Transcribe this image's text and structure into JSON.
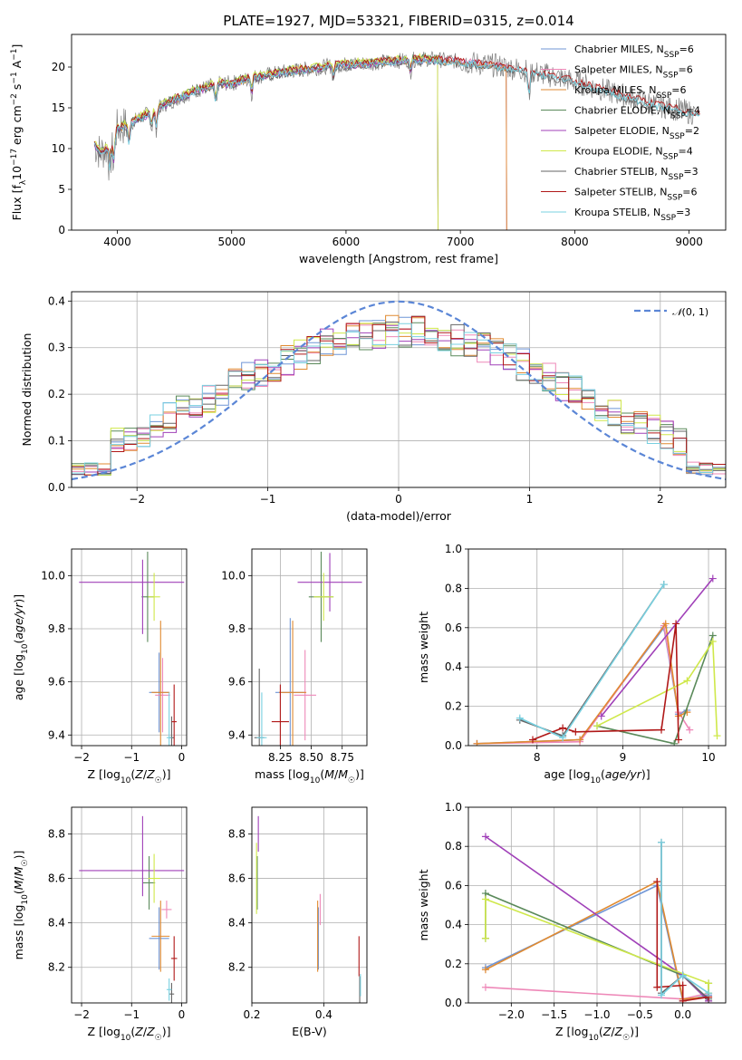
{
  "title": "PLATE=1927, MJD=53321, FIBERID=0315, z=0.014",
  "colors": {
    "Chabrier MILES": "#6f95d6",
    "Salpeter MILES": "#ee88b8",
    "Kroupa MILES": "#e08a30",
    "Chabrier ELODIE": "#5a8a5a",
    "Salpeter ELODIE": "#a040b8",
    "Kroupa ELODIE": "#cfe84a",
    "Chabrier STELIB": "#666666",
    "Salpeter STELIB": "#b01818",
    "Kroupa STELIB": "#78d0e0"
  },
  "chart_data": [
    {
      "id": "spectrum",
      "type": "line",
      "xlabel": "wavelength [Angstrom, rest frame]",
      "ylabel": "Flux [f_λ10^-17 erg cm^-2 s^-1 A^-1]",
      "xlim": [
        3600,
        9320
      ],
      "ylim": [
        0,
        24
      ],
      "xticks": [
        4000,
        5000,
        6000,
        7000,
        8000,
        9000
      ],
      "yticks": [
        0,
        5,
        10,
        15,
        20
      ],
      "legend_position": "top-right",
      "data_continuum": {
        "x": [
          3800,
          3850,
          3900,
          3950,
          4000,
          4100,
          4200,
          4300,
          4400,
          4500,
          4600,
          4700,
          4800,
          4900,
          5000,
          5100,
          5200,
          5300,
          5500,
          5700,
          5900,
          6100,
          6300,
          6500,
          6700,
          6900,
          7100,
          7300,
          7500,
          7700,
          7900,
          8100,
          8300,
          8500,
          8700,
          8900,
          9050
        ],
        "y": [
          10.5,
          9.5,
          10.0,
          10.5,
          12.5,
          13.0,
          13.8,
          14.5,
          15.3,
          16.0,
          16.6,
          17.2,
          17.6,
          18.0,
          18.0,
          18.4,
          18.8,
          19.0,
          19.5,
          19.8,
          20.2,
          20.4,
          20.6,
          20.8,
          21.0,
          20.8,
          20.5,
          20.2,
          19.8,
          19.2,
          18.6,
          17.8,
          17.0,
          16.2,
          15.4,
          14.8,
          14.3
        ]
      },
      "series": [
        {
          "name": "Chabrier MILES, N_SSP=6",
          "offset": 0.0,
          "xmax": 7400
        },
        {
          "name": "Salpeter MILES, N_SSP=6",
          "offset": 0.1,
          "xmax": 7400
        },
        {
          "name": "Kroupa MILES, N_SSP=6",
          "offset": -0.1,
          "xmax": 7400
        },
        {
          "name": "Chabrier ELODIE, N_SSP=4",
          "offset": 0.2,
          "xmax": 6800
        },
        {
          "name": "Salpeter ELODIE, N_SSP=2",
          "offset": -0.2,
          "xmax": 6800
        },
        {
          "name": "Kroupa ELODIE, N_SSP=4",
          "offset": 0.3,
          "xmax": 6800
        },
        {
          "name": "Chabrier STELIB, N_SSP=3",
          "offset": -0.3,
          "xmax": 9100
        },
        {
          "name": "Salpeter STELIB, N_SSP=6",
          "offset": 0.15,
          "xmax": 9100
        },
        {
          "name": "Kroupa STELIB, N_SSP=3",
          "offset": -0.15,
          "xmax": 9100
        }
      ]
    },
    {
      "id": "residuals",
      "type": "line",
      "xlabel": "(data-model)/error",
      "ylabel": "Normed distribution",
      "xlim": [
        -2.5,
        2.5
      ],
      "ylim": [
        0,
        0.42
      ],
      "xticks": [
        -2,
        -1,
        0,
        1,
        2
      ],
      "yticks": [
        0.0,
        0.1,
        0.2,
        0.3,
        0.4
      ],
      "grid": true,
      "legend_position": "top-right",
      "gaussian_label": "N(0,1)",
      "bin_width": 0.1
    },
    {
      "id": "age_vs_Z",
      "type": "scatter",
      "xlabel": "Z [log10(Z/Z☉)]",
      "ylabel": "age [log10(age/yr)]",
      "xlim": [
        -2.2,
        0.1
      ],
      "ylim": [
        9.36,
        10.1
      ],
      "xticks": [
        -2,
        -1,
        0
      ],
      "yticks": [
        9.4,
        9.6,
        9.8,
        10.0
      ],
      "grid": true,
      "points": [
        {
          "x": -0.45,
          "y": 9.56,
          "xe": 0.2,
          "ye": 0.15,
          "c": "Chabrier MILES"
        },
        {
          "x": -0.38,
          "y": 9.55,
          "xe": 0.15,
          "ye": 0.14,
          "c": "Salpeter MILES"
        },
        {
          "x": -0.42,
          "y": 9.56,
          "xe": 0.18,
          "ye": 0.27,
          "c": "Kroupa MILES"
        },
        {
          "x": -0.68,
          "y": 9.92,
          "xe": 0.12,
          "ye": 0.17,
          "c": "Chabrier ELODIE"
        },
        {
          "x": -1.0,
          "y": 9.975,
          "xe": 1.05,
          "ye": 0.0,
          "c": "Salpeter ELODIE"
        },
        {
          "x": -0.55,
          "y": 9.92,
          "xe": 0.12,
          "ye": 0.09,
          "c": "Kroupa ELODIE"
        },
        {
          "x": -0.2,
          "y": 9.39,
          "xe": 0.05,
          "ye": 0.08,
          "c": "Chabrier STELIB"
        },
        {
          "x": -0.15,
          "y": 9.45,
          "xe": 0.05,
          "ye": 0.14,
          "c": "Salpeter STELIB"
        },
        {
          "x": -0.25,
          "y": 9.39,
          "xe": 0.05,
          "ye": 0.17,
          "c": "Kroupa STELIB"
        },
        {
          "x": -0.78,
          "y": 9.92,
          "xe": 0.0,
          "ye": 0.14,
          "c": "Salpeter ELODIE"
        }
      ]
    },
    {
      "id": "age_vs_mass",
      "type": "scatter",
      "xlabel": "mass [log10(M/M☉)]",
      "ylabel": "",
      "xlim": [
        8.02,
        8.95
      ],
      "ylim": [
        9.36,
        10.1
      ],
      "xticks": [
        8.25,
        8.5,
        8.75
      ],
      "yticks": [
        9.4,
        9.6,
        9.8,
        10.0
      ],
      "grid": true,
      "points": [
        {
          "x": 8.33,
          "y": 9.56,
          "xe": 0.12,
          "ye": 0.28,
          "c": "Chabrier MILES"
        },
        {
          "x": 8.45,
          "y": 9.55,
          "xe": 0.09,
          "ye": 0.17,
          "c": "Salpeter MILES"
        },
        {
          "x": 8.35,
          "y": 9.56,
          "xe": 0.11,
          "ye": 0.27,
          "c": "Kroupa MILES"
        },
        {
          "x": 8.58,
          "y": 9.92,
          "xe": 0.1,
          "ye": 0.17,
          "c": "Chabrier ELODIE"
        },
        {
          "x": 8.65,
          "y": 9.975,
          "xe": 0.26,
          "ye": 0.11,
          "c": "Salpeter ELODIE"
        },
        {
          "x": 8.6,
          "y": 9.92,
          "xe": 0.08,
          "ye": 0.09,
          "c": "Kroupa ELODIE"
        },
        {
          "x": 8.08,
          "y": 9.39,
          "xe": 0.04,
          "ye": 0.26,
          "c": "Chabrier STELIB"
        },
        {
          "x": 8.25,
          "y": 9.45,
          "xe": 0.07,
          "ye": 0.14,
          "c": "Salpeter STELIB"
        },
        {
          "x": 8.1,
          "y": 9.39,
          "xe": 0.04,
          "ye": 0.17,
          "c": "Kroupa STELIB"
        }
      ]
    },
    {
      "id": "weight_vs_age",
      "type": "line",
      "xlabel": "age [log10(age/yr)]",
      "ylabel": "mass weight",
      "xlim": [
        7.2,
        10.2
      ],
      "ylim": [
        0,
        1.0
      ],
      "xticks": [
        8,
        9,
        10
      ],
      "yticks": [
        0.0,
        0.2,
        0.4,
        0.6,
        0.8,
        1.0
      ],
      "grid": true,
      "series": [
        {
          "c": "Chabrier MILES",
          "x": [
            7.3,
            8.5,
            9.48,
            9.65,
            9.75
          ],
          "y": [
            0.01,
            0.03,
            0.6,
            0.16,
            0.18
          ]
        },
        {
          "c": "Salpeter MILES",
          "x": [
            7.3,
            8.5,
            9.48,
            9.65,
            9.78
          ],
          "y": [
            0.01,
            0.02,
            0.61,
            0.17,
            0.08
          ]
        },
        {
          "c": "Kroupa MILES",
          "x": [
            7.3,
            8.5,
            9.5,
            9.65,
            9.75
          ],
          "y": [
            0.01,
            0.03,
            0.62,
            0.15,
            0.17
          ]
        },
        {
          "c": "Chabrier ELODIE",
          "x": [
            8.7,
            9.6,
            10.05
          ],
          "y": [
            0.1,
            0.01,
            0.56
          ]
        },
        {
          "c": "Salpeter ELODIE",
          "x": [
            8.75,
            10.05
          ],
          "y": [
            0.15,
            0.85
          ]
        },
        {
          "c": "Kroupa ELODIE",
          "x": [
            8.7,
            9.75,
            10.05,
            10.1
          ],
          "y": [
            0.1,
            0.33,
            0.53,
            0.05
          ]
        },
        {
          "c": "Chabrier STELIB",
          "x": [
            7.8,
            8.3,
            9.48
          ],
          "y": [
            0.13,
            0.05,
            0.82
          ]
        },
        {
          "c": "Salpeter STELIB",
          "x": [
            7.95,
            8.3,
            8.45,
            9.45,
            9.62,
            9.65
          ],
          "y": [
            0.03,
            0.09,
            0.07,
            0.08,
            0.62,
            0.03
          ]
        },
        {
          "c": "Kroupa STELIB",
          "x": [
            7.8,
            8.3,
            9.48
          ],
          "y": [
            0.14,
            0.04,
            0.82
          ]
        }
      ]
    },
    {
      "id": "mass_vs_Z",
      "type": "scatter",
      "xlabel": "Z [log10(Z/Z☉)]",
      "ylabel": "mass [log10(M/M☉)]",
      "xlim": [
        -2.2,
        0.1
      ],
      "ylim": [
        8.04,
        8.92
      ],
      "xticks": [
        -2,
        -1,
        0
      ],
      "yticks": [
        8.2,
        8.4,
        8.6,
        8.8
      ],
      "grid": true,
      "points": [
        {
          "x": -0.45,
          "y": 8.33,
          "xe": 0.2,
          "ye": 0.14,
          "c": "Chabrier MILES"
        },
        {
          "x": -0.3,
          "y": 8.46,
          "xe": 0.1,
          "ye": 0.04,
          "c": "Salpeter MILES"
        },
        {
          "x": -0.42,
          "y": 8.34,
          "xe": 0.18,
          "ye": 0.16,
          "c": "Kroupa MILES"
        },
        {
          "x": -0.65,
          "y": 8.58,
          "xe": 0.12,
          "ye": 0.12,
          "c": "Chabrier ELODIE"
        },
        {
          "x": -1.0,
          "y": 8.635,
          "xe": 1.05,
          "ye": 0.0,
          "c": "Salpeter ELODIE"
        },
        {
          "x": -0.55,
          "y": 8.6,
          "xe": 0.12,
          "ye": 0.11,
          "c": "Kroupa ELODIE"
        },
        {
          "x": -0.2,
          "y": 8.08,
          "xe": 0.05,
          "ye": 0.05,
          "c": "Chabrier STELIB"
        },
        {
          "x": -0.15,
          "y": 8.24,
          "xe": 0.06,
          "ye": 0.1,
          "c": "Salpeter STELIB"
        },
        {
          "x": -0.25,
          "y": 8.1,
          "xe": 0.05,
          "ye": 0.05,
          "c": "Kroupa STELIB"
        },
        {
          "x": -0.78,
          "y": 8.7,
          "xe": 0.0,
          "ye": 0.18,
          "c": "Salpeter ELODIE"
        }
      ]
    },
    {
      "id": "mass_vs_ebv",
      "type": "scatter",
      "xlabel": "E(B-V)",
      "ylabel": "",
      "xlim": [
        0.2,
        0.52
      ],
      "ylim": [
        8.04,
        8.92
      ],
      "xticks": [
        0.2,
        0.4
      ],
      "yticks": [
        8.2,
        8.4,
        8.6,
        8.8
      ],
      "grid": true,
      "points": [
        {
          "x": 0.385,
          "y": 8.33,
          "xe": 0.0,
          "ye": 0.14,
          "c": "Chabrier MILES"
        },
        {
          "x": 0.39,
          "y": 8.46,
          "xe": 0.0,
          "ye": 0.07,
          "c": "Salpeter MILES"
        },
        {
          "x": 0.383,
          "y": 8.34,
          "xe": 0.0,
          "ye": 0.16,
          "c": "Kroupa MILES"
        },
        {
          "x": 0.215,
          "y": 8.58,
          "xe": 0.0,
          "ye": 0.12,
          "c": "Chabrier ELODIE"
        },
        {
          "x": 0.218,
          "y": 8.8,
          "xe": 0.0,
          "ye": 0.08,
          "c": "Salpeter ELODIE"
        },
        {
          "x": 0.213,
          "y": 8.6,
          "xe": 0.0,
          "ye": 0.16,
          "c": "Kroupa ELODIE"
        },
        {
          "x": 0.5,
          "y": 8.1,
          "xe": 0.0,
          "ye": 0.06,
          "c": "Chabrier STELIB"
        },
        {
          "x": 0.498,
          "y": 8.25,
          "xe": 0.0,
          "ye": 0.09,
          "c": "Salpeter STELIB"
        },
        {
          "x": 0.502,
          "y": 8.12,
          "xe": 0.0,
          "ye": 0.05,
          "c": "Kroupa STELIB"
        }
      ]
    },
    {
      "id": "weight_vs_Z",
      "type": "line",
      "xlabel": "Z [log10(Z/Z☉)]",
      "ylabel": "mass weight",
      "xlim": [
        -2.5,
        0.5
      ],
      "ylim": [
        0,
        1.0
      ],
      "xticks": [
        -2.0,
        -1.5,
        -1.0,
        -0.5,
        0.0
      ],
      "yticks": [
        0.0,
        0.2,
        0.4,
        0.6,
        0.8,
        1.0
      ],
      "grid": true,
      "series": [
        {
          "c": "Chabrier MILES",
          "x": [
            -2.3,
            -0.3,
            0.0,
            0.3
          ],
          "y": [
            0.18,
            0.6,
            0.01,
            0.04
          ]
        },
        {
          "c": "Salpeter MILES",
          "x": [
            -2.3,
            0.0,
            0.3,
            0.3
          ],
          "y": [
            0.08,
            0.02,
            0.05,
            0.0
          ]
        },
        {
          "c": "Kroupa MILES",
          "x": [
            -2.3,
            -0.3,
            0.0,
            0.3
          ],
          "y": [
            0.17,
            0.62,
            0.02,
            0.03
          ]
        },
        {
          "c": "Chabrier ELODIE",
          "x": [
            -2.3,
            -2.3,
            -0.0,
            0.3,
            0.3
          ],
          "y": [
            0.33,
            0.56,
            0.14,
            0.01,
            0.1
          ]
        },
        {
          "c": "Salpeter ELODIE",
          "x": [
            -2.3,
            0.0,
            0.3
          ],
          "y": [
            0.85,
            0.14,
            0.01
          ]
        },
        {
          "c": "Kroupa ELODIE",
          "x": [
            -2.3,
            -2.3,
            0.3,
            0.3
          ],
          "y": [
            0.33,
            0.53,
            0.1,
            0.05
          ]
        },
        {
          "c": "Chabrier STELIB",
          "x": [
            -0.25,
            -0.25,
            0.0,
            0.3
          ],
          "y": [
            0.82,
            0.05,
            0.14,
            0.02
          ]
        },
        {
          "c": "Salpeter STELIB",
          "x": [
            -0.3,
            -0.3,
            0.0,
            0.0,
            0.3
          ],
          "y": [
            0.62,
            0.08,
            0.09,
            0.01,
            0.03
          ]
        },
        {
          "c": "Kroupa STELIB",
          "x": [
            -0.25,
            -0.25,
            0.0,
            0.3
          ],
          "y": [
            0.82,
            0.04,
            0.14,
            0.05
          ]
        }
      ]
    }
  ]
}
